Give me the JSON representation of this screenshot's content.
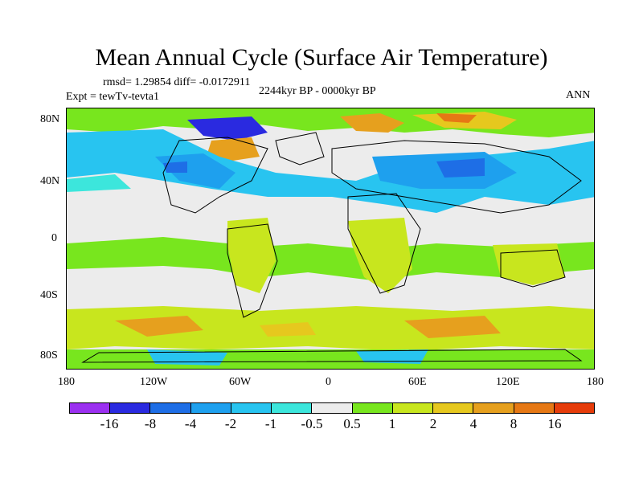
{
  "title": "Mean Annual Cycle (Surface Air Temperature)",
  "stats": "rmsd= 1.29854 diff= -0.0172911",
  "experiment": "Expt = tewTv-tevta1",
  "period": "2244kyr BP - 0000kyr BP",
  "season": "ANN",
  "lat_ticks": [
    "80N",
    "40N",
    "0",
    "40S",
    "80S"
  ],
  "lon_ticks": [
    "180",
    "120W",
    "60W",
    "0",
    "60E",
    "120E",
    "180"
  ],
  "colorbar": {
    "colors": [
      "#9b30f0",
      "#2a2ae0",
      "#1e6ee6",
      "#1ea0ee",
      "#28c4f0",
      "#3ce6dc",
      "#ececec",
      "#78e61e",
      "#c8e61e",
      "#e6c81e",
      "#e6a01e",
      "#e67814",
      "#e63c0a"
    ],
    "labels": [
      "-16",
      "-8",
      "-4",
      "-2",
      "-1",
      "-0.5",
      "0.5",
      "1",
      "2",
      "4",
      "8",
      "16"
    ]
  }
}
